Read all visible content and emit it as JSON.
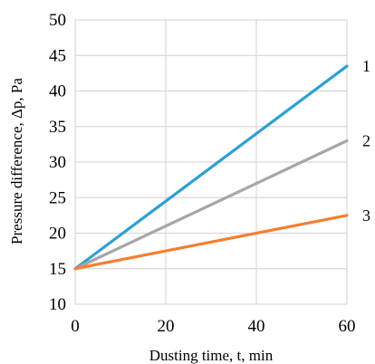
{
  "chart_data": {
    "type": "line",
    "title": "",
    "xlabel": "Dusting time, t, min",
    "ylabel": "Pressure difference, Δp, Pa",
    "xlim": [
      0,
      60
    ],
    "ylim": [
      10,
      50
    ],
    "xticks": [
      0,
      20,
      40,
      60
    ],
    "yticks": [
      10,
      15,
      20,
      25,
      30,
      35,
      40,
      45,
      50
    ],
    "grid": true,
    "legend": "none",
    "series": [
      {
        "name": "1",
        "color": "#2e9fd4",
        "x": [
          0,
          60
        ],
        "y": [
          15,
          43.5
        ]
      },
      {
        "name": "2",
        "color": "#a6a6a6",
        "x": [
          0,
          60
        ],
        "y": [
          15,
          33
        ]
      },
      {
        "name": "3",
        "color": "#f47f31",
        "x": [
          0,
          60
        ],
        "y": [
          15,
          22.5
        ]
      }
    ]
  }
}
